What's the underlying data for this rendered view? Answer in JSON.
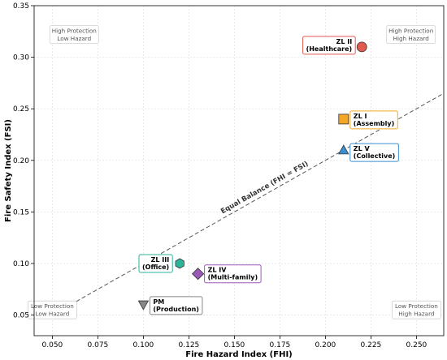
{
  "chart_data": {
    "type": "scatter",
    "title": "",
    "xlabel": "Fire Hazard Index (FHI)",
    "ylabel": "Fire Safety Index (FSI)",
    "xlim": [
      0.04,
      0.265
    ],
    "ylim": [
      0.03,
      0.35
    ],
    "x_ticks": [
      "0.050",
      "0.075",
      "0.100",
      "0.125",
      "0.150",
      "0.175",
      "0.200",
      "0.225",
      "0.250"
    ],
    "y_ticks": [
      "0.05",
      "0.10",
      "0.15",
      "0.20",
      "0.25",
      "0.30",
      "0.35"
    ],
    "grid": true,
    "reference_line": {
      "label": "Equal Balance (FHI = FSI)",
      "style": "dashed",
      "color": "#555555"
    },
    "quadrant_labels": [
      {
        "id": "tl",
        "lines": [
          "High Protection",
          "Low Hazard"
        ]
      },
      {
        "id": "tr",
        "lines": [
          "High Protection",
          "High Hazard"
        ]
      },
      {
        "id": "bl",
        "lines": [
          "Low Protection",
          "Low Hazard"
        ]
      },
      {
        "id": "br",
        "lines": [
          "Low Protection",
          "High Hazard"
        ]
      }
    ],
    "points": [
      {
        "id": "zl2",
        "x": 0.22,
        "y": 0.31,
        "marker": "circle",
        "color": "#e05a50",
        "line1": "ZL II",
        "line2": "(Healthcare)"
      },
      {
        "id": "zl1",
        "x": 0.21,
        "y": 0.24,
        "marker": "square",
        "color": "#f5a623",
        "line1": "ZL I",
        "line2": "(Assembly)"
      },
      {
        "id": "zl5",
        "x": 0.21,
        "y": 0.21,
        "marker": "triangle-up",
        "color": "#3b8fd0",
        "line1": "ZL V",
        "line2": "(Collective)"
      },
      {
        "id": "zl3",
        "x": 0.12,
        "y": 0.1,
        "marker": "hexagon",
        "color": "#2ab59a",
        "line1": "ZL III",
        "line2": "(Office)"
      },
      {
        "id": "zl4",
        "x": 0.13,
        "y": 0.09,
        "marker": "diamond",
        "color": "#9b59b6",
        "line1": "ZL IV",
        "line2": "(Multi-family)"
      },
      {
        "id": "pm",
        "x": 0.1,
        "y": 0.06,
        "marker": "triangle-down",
        "color": "#888888",
        "line1": "PM",
        "line2": "(Production)"
      }
    ]
  }
}
